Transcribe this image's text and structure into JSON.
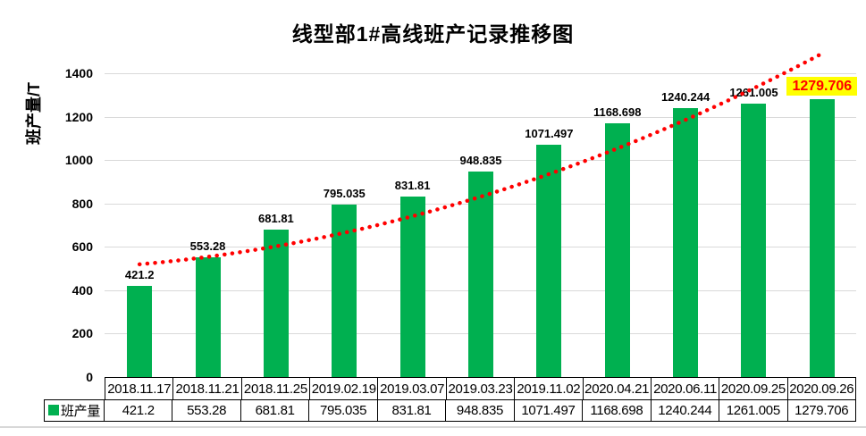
{
  "chart_data": {
    "type": "bar",
    "title": "线型部1#高线班产记录推移图",
    "ylabel": "班产量/T",
    "categories": [
      "2018.11.17",
      "2018.11.21",
      "2018.11.25",
      "2019.02.19",
      "2019.03.07",
      "2019.03.23",
      "2019.11.02",
      "2020.04.21",
      "2020.06.11",
      "2020.09.25",
      "2020.09.26"
    ],
    "values": [
      421.2,
      553.28,
      681.81,
      795.035,
      831.81,
      948.835,
      1071.497,
      1168.698,
      1240.244,
      1261.005,
      1279.706
    ],
    "series_name": "班产量",
    "ylim": [
      0,
      1500
    ],
    "yticks": [
      0,
      200,
      400,
      600,
      800,
      1000,
      1200,
      1400
    ],
    "grid": "horizontal",
    "bar_color": "#00B050",
    "gridline_color": "#d9d9d9",
    "highlight": {
      "index": 10,
      "text_color": "#FF0000",
      "bg_color": "#FFFF00"
    },
    "trendline": {
      "style": "dotted",
      "color": "#FF0000",
      "start_value": 520,
      "mid_value": 832,
      "end_value": 1492
    },
    "legend": {
      "position": "table-left",
      "label": "班产量",
      "swatch_color": "#00B050"
    }
  }
}
